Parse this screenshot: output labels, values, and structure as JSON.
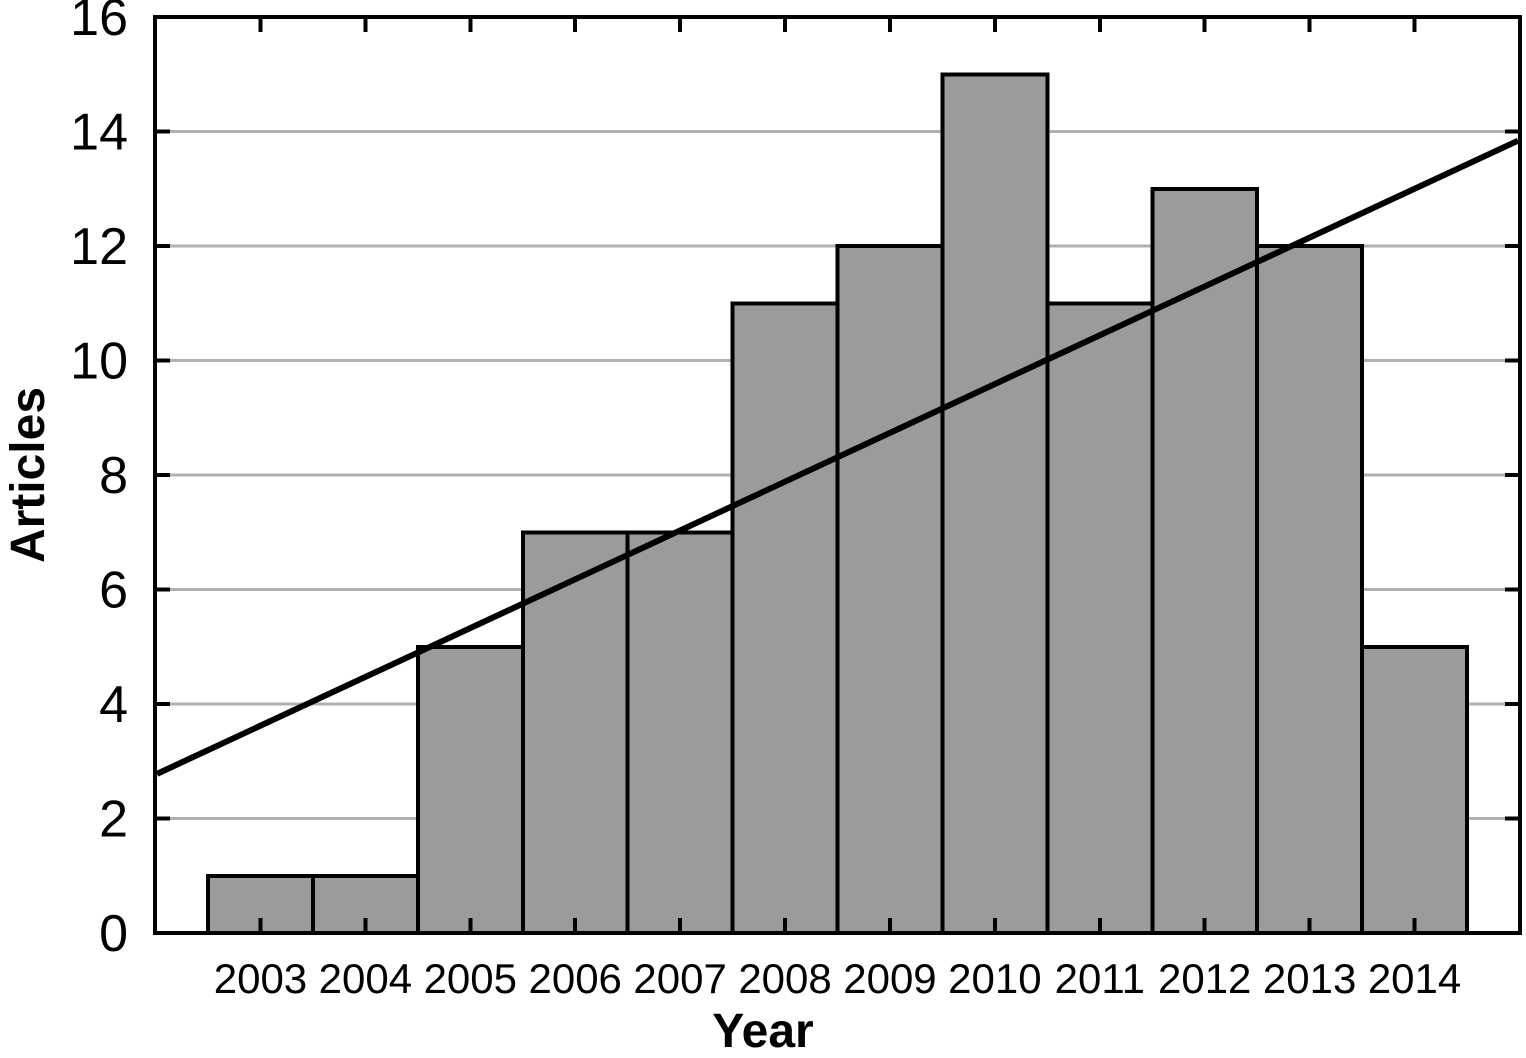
{
  "chart_data": {
    "type": "bar",
    "title": "",
    "xlabel": "Year",
    "ylabel": "Articles",
    "categories": [
      "2003",
      "2004",
      "2005",
      "2006",
      "2007",
      "2008",
      "2009",
      "2010",
      "2011",
      "2012",
      "2013",
      "2014"
    ],
    "values": [
      1,
      1,
      5,
      7,
      7,
      11,
      12,
      15,
      11,
      13,
      12,
      5
    ],
    "ylim": [
      0,
      16
    ],
    "yticks": [
      0,
      2,
      4,
      6,
      8,
      10,
      12,
      14,
      16
    ],
    "gridlines": {
      "orientation": "horizontal",
      "at": [
        2,
        4,
        6,
        8,
        10,
        12,
        14
      ]
    },
    "legend": "none",
    "trendline": {
      "shape": "linear",
      "start_value": 2.78,
      "end_value": 13.84
    },
    "colors": {
      "background": "#ffffff",
      "bar_fill": "#9b9b9b",
      "bar_border": "#000000",
      "gridline": "#b0b0b0",
      "axis": "#000000",
      "trend_line": "#000000",
      "text": "#000000"
    }
  }
}
